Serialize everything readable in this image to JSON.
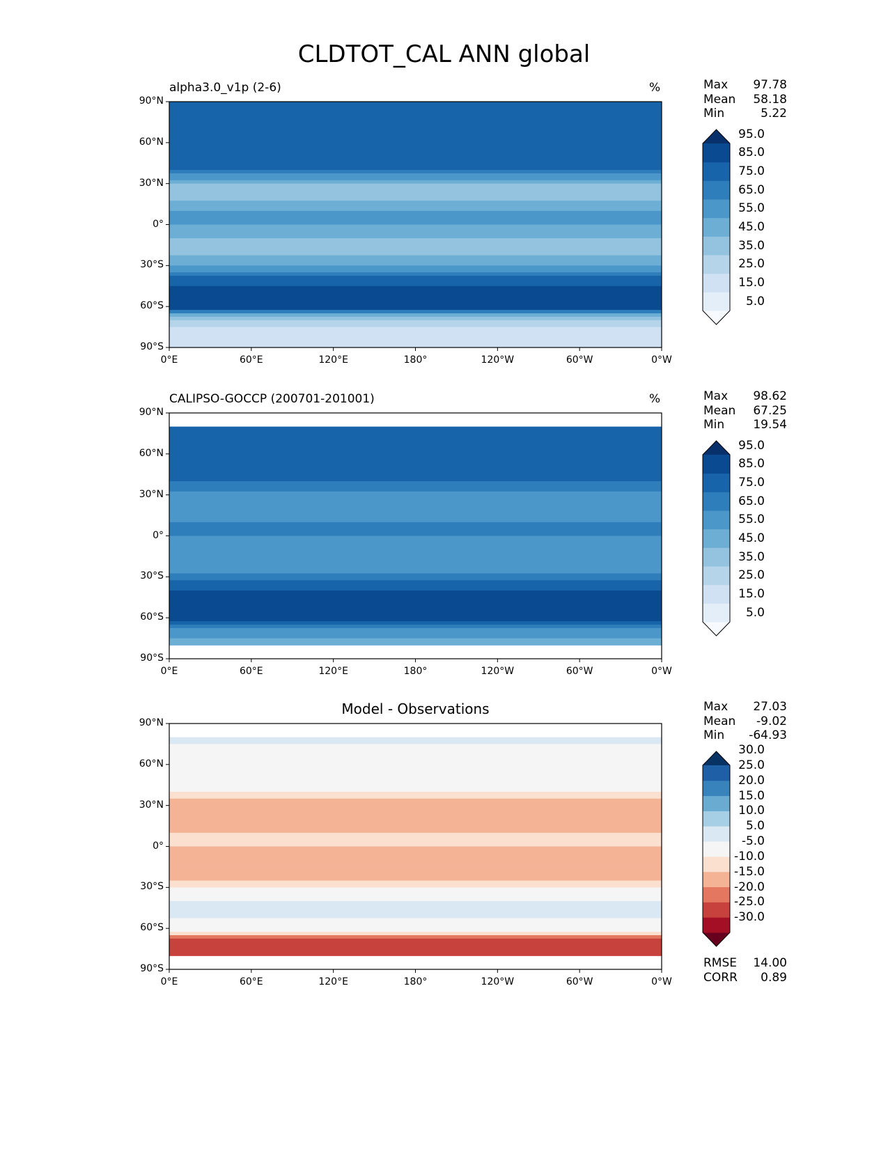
{
  "chart_data": [
    {
      "type": "heatmap",
      "title": "alpha3.0_v1p (2-6)",
      "units": "%",
      "stats": {
        "Max": "97.78",
        "Mean": "58.18",
        "Min": "5.22"
      },
      "colormap": "blues",
      "levels": [
        "5.0",
        "15.0",
        "25.0",
        "35.0",
        "45.0",
        "55.0",
        "65.0",
        "75.0",
        "85.0",
        "95.0"
      ],
      "zonal_profile_lat": [
        90,
        80,
        70,
        60,
        50,
        40,
        30,
        20,
        10,
        0,
        -10,
        -20,
        -30,
        -40,
        -50,
        -60,
        -70,
        -80,
        -90
      ],
      "zonal_profile": [
        75,
        85,
        80,
        75,
        85,
        75,
        45,
        40,
        55,
        55,
        45,
        40,
        55,
        80,
        90,
        95,
        30,
        20,
        15
      ]
    },
    {
      "type": "heatmap",
      "title": "CALIPSO-GOCCP (200701-201001)",
      "units": "%",
      "stats": {
        "Max": "98.62",
        "Mean": "67.25",
        "Min": "19.54"
      },
      "colormap": "blues",
      "levels": [
        "5.0",
        "15.0",
        "25.0",
        "35.0",
        "45.0",
        "55.0",
        "65.0",
        "75.0",
        "85.0",
        "95.0"
      ],
      "zonal_profile_lat": [
        90,
        80,
        70,
        60,
        50,
        40,
        30,
        20,
        10,
        0,
        -10,
        -20,
        -30,
        -40,
        -50,
        -60,
        -70,
        -80,
        -90
      ],
      "zonal_profile": [
        null,
        80,
        75,
        75,
        85,
        75,
        60,
        55,
        65,
        65,
        60,
        55,
        70,
        85,
        90,
        90,
        60,
        50,
        null
      ]
    },
    {
      "type": "heatmap",
      "title": "Model - Observations",
      "units": "",
      "stats": {
        "Max": "27.03",
        "Mean": "-9.02",
        "Min": "-64.93"
      },
      "metrics": {
        "RMSE": "14.00",
        "CORR": "0.89"
      },
      "colormap": "rdbu",
      "levels": [
        "-30.0",
        "-25.0",
        "-20.0",
        "-15.0",
        "-10.0",
        "-5.0",
        "5.0",
        "10.0",
        "15.0",
        "20.0",
        "25.0",
        "30.0"
      ],
      "zonal_profile_lat": [
        90,
        80,
        70,
        60,
        50,
        40,
        30,
        20,
        10,
        0,
        -10,
        -20,
        -30,
        -40,
        -50,
        -60,
        -70,
        -80,
        -90
      ],
      "zonal_profile": [
        null,
        8,
        0,
        0,
        0,
        -5,
        -15,
        -15,
        -10,
        -10,
        -15,
        -15,
        -5,
        6,
        6,
        0,
        -25,
        -20,
        null
      ]
    }
  ],
  "figure_title": "CLDTOT_CAL ANN global",
  "yticks": [
    "90°N",
    "60°N",
    "30°N",
    "0°",
    "30°S",
    "60°S",
    "90°S"
  ],
  "xticks": [
    "0°E",
    "60°E",
    "120°E",
    "180°",
    "120°W",
    "60°W",
    "0°W"
  ],
  "blues": [
    "#f7fbff",
    "#e3eef9",
    "#cfe1f2",
    "#b5d4e9",
    "#93c3df",
    "#6daed5",
    "#4b97c9",
    "#2f7ebc",
    "#1864aa",
    "#0a4a90",
    "#08306b"
  ],
  "rdbu": [
    "#67001f",
    "#a50f26",
    "#c8423d",
    "#e3775f",
    "#f5b396",
    "#fbdfcf",
    "#f5f5f5",
    "#d9e8f2",
    "#a6cee4",
    "#6aabd1",
    "#3983bd",
    "#1e5fa6",
    "#063264"
  ]
}
